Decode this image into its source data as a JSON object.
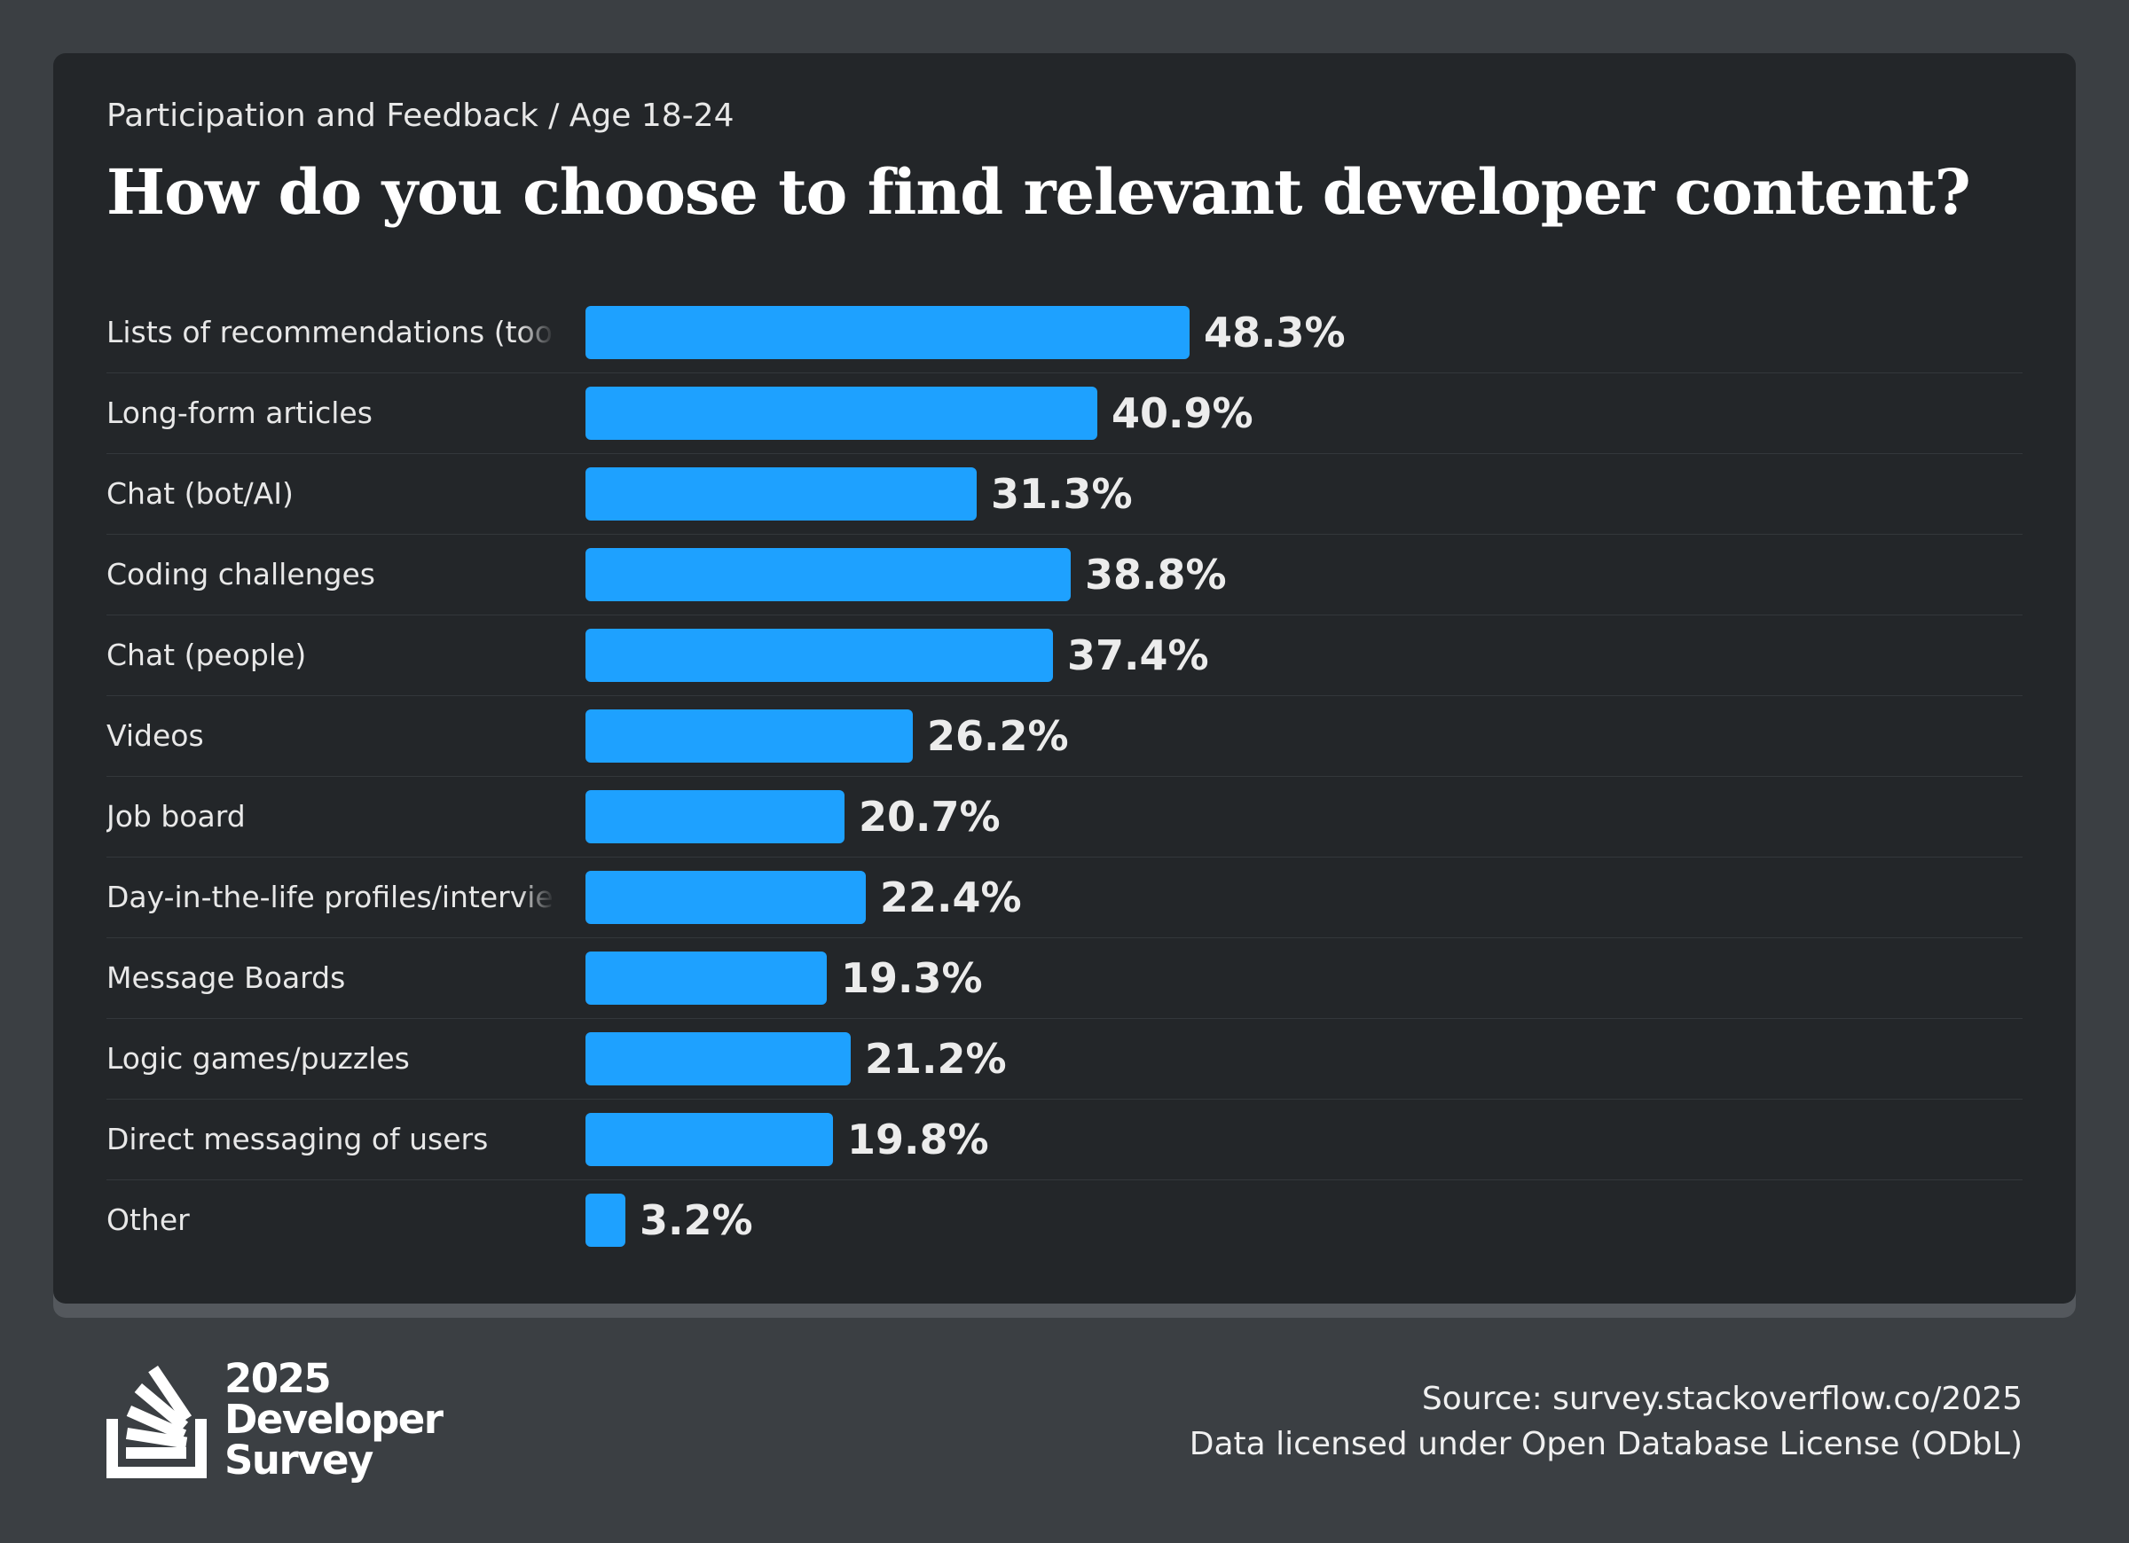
{
  "header": {
    "breadcrumb": "Participation and Feedback / Age 18-24",
    "title": "How do you choose to find relevant developer content?"
  },
  "chart_data": {
    "type": "bar",
    "orientation": "horizontal",
    "title": "How do you choose to find relevant developer content?",
    "unit": "%",
    "xlim": [
      0,
      100
    ],
    "grid": false,
    "bar_color": "#1ea1ff",
    "categories": [
      "Lists of recommendations (tools, libraries, frameworks)",
      "Long-form articles",
      "Chat (bot/AI)",
      "Coding challenges",
      "Chat (people)",
      "Videos",
      "Job board",
      "Day-in-the-life profiles/interviews",
      "Message Boards",
      "Logic games/puzzles",
      "Direct messaging of users",
      "Other"
    ],
    "values": [
      48.3,
      40.9,
      31.3,
      38.8,
      37.4,
      26.2,
      20.7,
      22.4,
      19.3,
      21.2,
      19.8,
      3.2
    ],
    "value_labels": [
      "48.3%",
      "40.9%",
      "31.3%",
      "38.8%",
      "37.4%",
      "26.2%",
      "20.7%",
      "22.4%",
      "19.3%",
      "21.2%",
      "19.8%",
      "3.2%"
    ]
  },
  "logo": {
    "icon": "stack-overflow-logo-icon",
    "line1": "2025",
    "line2": "Developer",
    "line3": "Survey"
  },
  "footer": {
    "source": "Source: survey.stackoverflow.co/2025",
    "license": "Data licensed under Open Database License (ODbL)"
  }
}
